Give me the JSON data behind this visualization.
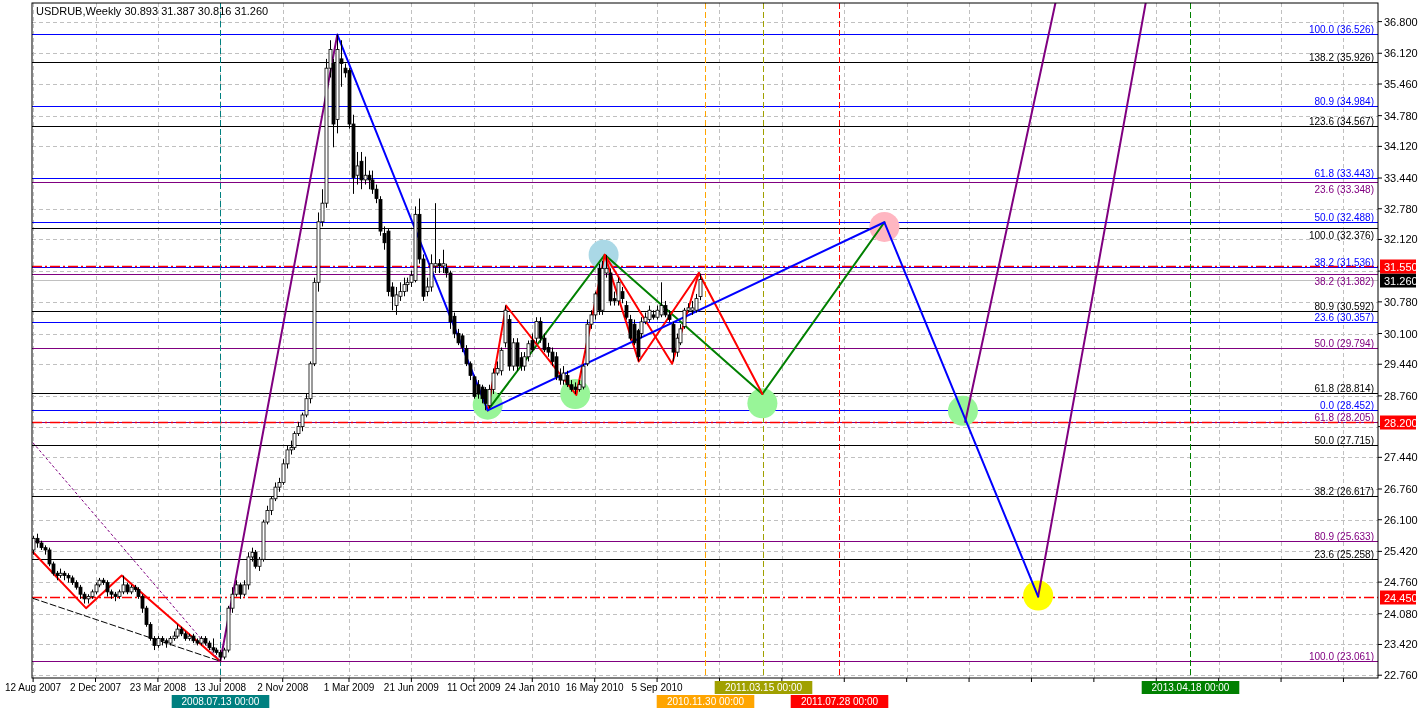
{
  "chart_data": {
    "type": "candlestick",
    "title": "USDRUB,Weekly  30.893 31.387 30.816 31.260",
    "x": [
      "2007-08-12",
      "2007-08-19",
      "2007-08-26",
      "2007-09-02",
      "2007-09-09",
      "2007-09-16",
      "2007-09-23",
      "2007-09-30",
      "2007-10-07",
      "2007-10-14",
      "2007-10-21",
      "2007-10-28",
      "2007-11-04",
      "2007-11-11",
      "2007-11-18",
      "2007-11-25",
      "2007-12-02",
      "2007-12-09",
      "2007-12-16",
      "2007-12-23",
      "2007-12-30",
      "2008-01-06",
      "2008-01-13",
      "2008-01-20",
      "2008-01-27",
      "2008-02-03",
      "2008-02-10",
      "2008-02-17",
      "2008-02-24",
      "2008-03-02",
      "2008-03-09",
      "2008-03-16",
      "2008-03-23",
      "2008-03-30",
      "2008-04-06",
      "2008-04-13",
      "2008-04-20",
      "2008-04-27",
      "2008-05-04",
      "2008-05-11",
      "2008-05-18",
      "2008-05-25",
      "2008-06-01",
      "2008-06-08",
      "2008-06-15",
      "2008-06-22",
      "2008-06-29",
      "2008-07-06",
      "2008-07-13",
      "2008-07-20",
      "2008-07-27",
      "2008-08-03",
      "2008-08-10",
      "2008-08-17",
      "2008-08-24",
      "2008-08-31",
      "2008-09-07",
      "2008-09-14",
      "2008-09-21",
      "2008-09-28",
      "2008-10-05",
      "2008-10-12",
      "2008-10-19",
      "2008-10-26",
      "2008-11-02",
      "2008-11-09",
      "2008-11-16",
      "2008-11-23",
      "2008-11-30",
      "2008-12-07",
      "2008-12-14",
      "2008-12-21",
      "2008-12-28",
      "2009-01-04",
      "2009-01-11",
      "2009-01-18",
      "2009-01-25",
      "2009-02-01",
      "2009-02-08",
      "2009-02-15",
      "2009-02-22",
      "2009-03-01",
      "2009-03-08",
      "2009-03-15",
      "2009-03-22",
      "2009-03-29",
      "2009-04-05",
      "2009-04-12",
      "2009-04-19",
      "2009-04-26",
      "2009-05-03",
      "2009-05-10",
      "2009-05-17",
      "2009-05-24",
      "2009-05-31",
      "2009-06-07",
      "2009-06-14",
      "2009-06-21",
      "2009-06-28",
      "2009-07-05",
      "2009-07-12",
      "2009-07-19",
      "2009-07-26",
      "2009-08-02",
      "2009-08-09",
      "2009-08-16",
      "2009-08-23",
      "2009-08-30",
      "2009-09-06",
      "2009-09-13",
      "2009-09-20",
      "2009-09-27",
      "2009-10-04",
      "2009-10-11",
      "2009-10-18",
      "2009-10-25",
      "2009-11-01",
      "2009-11-08",
      "2009-11-15",
      "2009-11-22",
      "2009-11-29",
      "2009-12-06",
      "2009-12-13",
      "2009-12-20",
      "2009-12-27",
      "2010-01-03",
      "2010-01-10",
      "2010-01-17",
      "2010-01-24",
      "2010-01-31",
      "2010-02-07",
      "2010-02-14",
      "2010-02-21",
      "2010-02-28",
      "2010-03-07",
      "2010-03-14",
      "2010-03-21",
      "2010-03-28",
      "2010-04-04",
      "2010-04-11",
      "2010-04-18",
      "2010-04-25",
      "2010-05-02",
      "2010-05-09",
      "2010-05-16",
      "2010-05-23",
      "2010-05-30",
      "2010-06-06",
      "2010-06-13",
      "2010-06-20",
      "2010-06-27",
      "2010-07-04",
      "2010-07-11",
      "2010-07-18",
      "2010-07-25",
      "2010-08-01",
      "2010-08-08",
      "2010-08-15",
      "2010-08-22",
      "2010-08-29",
      "2010-09-05",
      "2010-09-12",
      "2010-09-19",
      "2010-09-26",
      "2010-10-03",
      "2010-10-10",
      "2010-10-17",
      "2010-10-24",
      "2010-10-31",
      "2010-11-07",
      "2010-11-14",
      "2010-11-21"
    ],
    "ohlc": [
      [
        25.45,
        25.75,
        25.35,
        25.7
      ],
      [
        25.7,
        25.8,
        25.5,
        25.6
      ],
      [
        25.6,
        25.65,
        25.45,
        25.5
      ],
      [
        25.5,
        25.55,
        25.35,
        25.45
      ],
      [
        25.45,
        25.5,
        25.1,
        25.15
      ],
      [
        25.15,
        25.2,
        24.9,
        24.95
      ],
      [
        24.95,
        25.0,
        24.8,
        24.9
      ],
      [
        24.9,
        25.05,
        24.85,
        24.95
      ],
      [
        24.95,
        25.0,
        24.8,
        24.9
      ],
      [
        24.9,
        24.95,
        24.75,
        24.85
      ],
      [
        24.85,
        24.9,
        24.7,
        24.75
      ],
      [
        24.75,
        24.8,
        24.6,
        24.65
      ],
      [
        24.65,
        24.7,
        24.4,
        24.5
      ],
      [
        24.5,
        24.55,
        24.3,
        24.4
      ],
      [
        24.4,
        24.5,
        24.3,
        24.45
      ],
      [
        24.45,
        24.6,
        24.4,
        24.55
      ],
      [
        24.55,
        24.75,
        24.5,
        24.7
      ],
      [
        24.7,
        24.85,
        24.65,
        24.8
      ],
      [
        24.8,
        24.85,
        24.7,
        24.75
      ],
      [
        24.75,
        24.8,
        24.45,
        24.55
      ],
      [
        24.55,
        24.6,
        24.4,
        24.5
      ],
      [
        24.5,
        24.55,
        24.35,
        24.45
      ],
      [
        24.45,
        24.6,
        24.4,
        24.55
      ],
      [
        24.55,
        24.9,
        24.5,
        24.7
      ],
      [
        24.7,
        24.75,
        24.5,
        24.55
      ],
      [
        24.55,
        24.7,
        24.5,
        24.65
      ],
      [
        24.65,
        24.7,
        24.55,
        24.6
      ],
      [
        24.6,
        24.65,
        24.4,
        24.45
      ],
      [
        24.45,
        24.5,
        24.1,
        24.2
      ],
      [
        24.2,
        24.25,
        23.8,
        23.85
      ],
      [
        23.85,
        23.9,
        23.5,
        23.55
      ],
      [
        23.55,
        23.6,
        23.3,
        23.4
      ],
      [
        23.4,
        23.6,
        23.35,
        23.55
      ],
      [
        23.55,
        23.6,
        23.4,
        23.5
      ],
      [
        23.5,
        23.55,
        23.35,
        23.45
      ],
      [
        23.45,
        23.6,
        23.4,
        23.55
      ],
      [
        23.55,
        23.7,
        23.5,
        23.6
      ],
      [
        23.6,
        23.85,
        23.55,
        23.75
      ],
      [
        23.75,
        23.8,
        23.6,
        23.65
      ],
      [
        23.65,
        23.7,
        23.5,
        23.55
      ],
      [
        23.55,
        23.65,
        23.5,
        23.6
      ],
      [
        23.6,
        23.65,
        23.45,
        23.5
      ],
      [
        23.5,
        23.55,
        23.4,
        23.45
      ],
      [
        23.45,
        23.6,
        23.4,
        23.55
      ],
      [
        23.55,
        23.6,
        23.4,
        23.45
      ],
      [
        23.45,
        23.5,
        23.3,
        23.35
      ],
      [
        23.35,
        23.55,
        23.25,
        23.3
      ],
      [
        23.3,
        23.35,
        23.2,
        23.25
      ],
      [
        23.25,
        23.3,
        23.061,
        23.15
      ],
      [
        23.15,
        23.35,
        23.1,
        23.3
      ],
      [
        23.3,
        24.25,
        23.25,
        24.2
      ],
      [
        24.2,
        24.65,
        24.1,
        24.5
      ],
      [
        24.5,
        24.8,
        24.45,
        24.7
      ],
      [
        24.7,
        24.75,
        24.4,
        24.5
      ],
      [
        24.5,
        24.8,
        24.45,
        24.7
      ],
      [
        24.7,
        25.4,
        24.6,
        25.3
      ],
      [
        25.3,
        25.5,
        25.2,
        25.4
      ],
      [
        25.4,
        25.45,
        25.05,
        25.1
      ],
      [
        25.1,
        25.3,
        25.0,
        25.25
      ],
      [
        25.25,
        26.1,
        25.2,
        26.05
      ],
      [
        26.05,
        26.4,
        26.0,
        26.3
      ],
      [
        26.3,
        26.6,
        26.2,
        26.55
      ],
      [
        26.55,
        26.9,
        26.5,
        26.8
      ],
      [
        26.8,
        27.0,
        26.7,
        26.9
      ],
      [
        26.9,
        27.4,
        26.85,
        27.3
      ],
      [
        27.3,
        27.7,
        27.2,
        27.6
      ],
      [
        27.6,
        27.8,
        27.5,
        27.65
      ],
      [
        27.65,
        28.0,
        27.6,
        27.95
      ],
      [
        27.95,
        28.2,
        27.9,
        28.1
      ],
      [
        28.1,
        28.4,
        28.0,
        28.35
      ],
      [
        28.35,
        28.8,
        28.3,
        28.7
      ],
      [
        28.7,
        29.5,
        28.6,
        29.45
      ],
      [
        29.45,
        31.3,
        29.4,
        31.2
      ],
      [
        31.2,
        32.7,
        31.0,
        32.5
      ],
      [
        32.5,
        33.2,
        32.4,
        32.9
      ],
      [
        32.9,
        36.0,
        32.8,
        35.8
      ],
      [
        35.8,
        36.4,
        35.6,
        36.2
      ],
      [
        35.9,
        36.0,
        34.1,
        34.6
      ],
      [
        34.7,
        36.526,
        34.4,
        36.2
      ],
      [
        36.0,
        36.4,
        35.4,
        35.9
      ],
      [
        35.8,
        35.9,
        35.6,
        35.7
      ],
      [
        35.75,
        35.8,
        34.5,
        34.6
      ],
      [
        34.6,
        34.8,
        33.1,
        33.45
      ],
      [
        33.5,
        34.0,
        33.3,
        33.7
      ],
      [
        33.8,
        34.0,
        33.2,
        33.4
      ],
      [
        33.4,
        33.9,
        33.3,
        33.5
      ],
      [
        33.5,
        33.6,
        33.2,
        33.4
      ],
      [
        33.4,
        33.6,
        33.1,
        33.2
      ],
      [
        33.2,
        33.3,
        32.9,
        33.0
      ],
      [
        32.98,
        33.05,
        32.2,
        32.3
      ],
      [
        32.25,
        32.4,
        31.9,
        32.05
      ],
      [
        32.3,
        32.35,
        30.9,
        31.0
      ],
      [
        31.1,
        31.2,
        30.6,
        30.9
      ],
      [
        30.7,
        31.1,
        30.5,
        30.93
      ],
      [
        30.9,
        31.2,
        30.8,
        31.0
      ],
      [
        31.0,
        31.3,
        30.9,
        31.15
      ],
      [
        31.15,
        31.3,
        31.0,
        31.2
      ],
      [
        31.2,
        31.45,
        31.1,
        31.35
      ],
      [
        31.24,
        32.83,
        31.2,
        32.66
      ],
      [
        32.66,
        33.0,
        31.6,
        31.7
      ],
      [
        31.7,
        31.8,
        30.8,
        30.9
      ],
      [
        31.0,
        31.3,
        30.9,
        31.1
      ],
      [
        31.1,
        31.8,
        31.0,
        31.6
      ],
      [
        31.55,
        32.9,
        31.4,
        31.6
      ],
      [
        31.6,
        31.7,
        31.4,
        31.55
      ],
      [
        31.55,
        31.9,
        31.4,
        31.6
      ],
      [
        31.5,
        31.6,
        31.3,
        31.4
      ],
      [
        31.4,
        31.45,
        30.2,
        30.35
      ],
      [
        30.47,
        30.55,
        30.0,
        30.1
      ],
      [
        30.1,
        30.2,
        29.85,
        29.9
      ],
      [
        30.05,
        30.1,
        29.7,
        29.8
      ],
      [
        29.78,
        29.85,
        29.4,
        29.45
      ],
      [
        29.45,
        29.5,
        29.1,
        29.2
      ],
      [
        29.17,
        29.2,
        28.7,
        28.75
      ],
      [
        29.0,
        29.1,
        28.7,
        28.8
      ],
      [
        28.95,
        29.0,
        28.6,
        28.7
      ],
      [
        28.9,
        28.95,
        28.452,
        28.6
      ],
      [
        28.55,
        29.0,
        28.5,
        28.9
      ],
      [
        28.9,
        29.35,
        28.8,
        29.25
      ],
      [
        29.25,
        29.5,
        29.2,
        29.35
      ],
      [
        29.3,
        29.8,
        29.2,
        29.74
      ],
      [
        29.9,
        30.7,
        29.8,
        30.6
      ],
      [
        30.4,
        30.5,
        29.3,
        29.4
      ],
      [
        29.4,
        30.0,
        29.3,
        29.9
      ],
      [
        29.9,
        30.0,
        29.3,
        29.4
      ],
      [
        29.58,
        29.7,
        29.3,
        29.4
      ],
      [
        29.4,
        29.7,
        29.3,
        29.6
      ],
      [
        29.6,
        29.95,
        29.5,
        29.88
      ],
      [
        29.95,
        30.1,
        29.7,
        29.75
      ],
      [
        30.0,
        30.45,
        29.9,
        30.36
      ],
      [
        30.36,
        30.45,
        29.9,
        30.0
      ],
      [
        30.0,
        30.1,
        29.7,
        29.75
      ],
      [
        29.8,
        29.9,
        29.6,
        29.7
      ],
      [
        29.7,
        29.8,
        29.4,
        29.5
      ],
      [
        29.6,
        29.7,
        29.1,
        29.17
      ],
      [
        29.2,
        29.35,
        29.0,
        29.1
      ],
      [
        29.1,
        29.4,
        29.0,
        29.25
      ],
      [
        29.2,
        29.3,
        28.95,
        29.0
      ],
      [
        29.0,
        29.1,
        28.85,
        28.9
      ],
      [
        28.95,
        29.05,
        28.8,
        28.9
      ],
      [
        28.9,
        29.1,
        28.85,
        29.0
      ],
      [
        28.95,
        29.45,
        28.9,
        29.4
      ],
      [
        29.45,
        30.4,
        29.4,
        30.3
      ],
      [
        30.3,
        30.6,
        30.2,
        30.5
      ],
      [
        30.5,
        31.0,
        30.4,
        30.95
      ],
      [
        31.5,
        31.6,
        30.5,
        30.6
      ],
      [
        30.6,
        31.66,
        30.5,
        31.5
      ],
      [
        31.4,
        31.79,
        31.3,
        31.5
      ],
      [
        31.4,
        31.5,
        30.7,
        30.8
      ],
      [
        30.85,
        31.0,
        30.7,
        30.8
      ],
      [
        30.8,
        31.3,
        30.7,
        31.2
      ],
      [
        31.0,
        31.1,
        30.75,
        30.85
      ],
      [
        30.7,
        30.8,
        30.4,
        30.45
      ],
      [
        30.4,
        30.5,
        29.95,
        30.0
      ],
      [
        30.3,
        30.4,
        29.85,
        29.9
      ],
      [
        30.16,
        30.2,
        29.5,
        29.6
      ],
      [
        30.1,
        30.45,
        30.0,
        30.35
      ],
      [
        30.35,
        30.55,
        30.3,
        30.45
      ],
      [
        30.4,
        30.7,
        30.35,
        30.6
      ],
      [
        30.5,
        30.6,
        30.4,
        30.45
      ],
      [
        30.45,
        30.7,
        30.4,
        30.6
      ],
      [
        30.5,
        31.2,
        30.45,
        30.7
      ],
      [
        30.7,
        30.8,
        30.45,
        30.5
      ],
      [
        30.5,
        30.6,
        30.35,
        30.4
      ],
      [
        30.3,
        30.35,
        29.5,
        29.7
      ],
      [
        29.7,
        30.1,
        29.6,
        30.0
      ],
      [
        29.9,
        30.3,
        29.85,
        30.2
      ],
      [
        30.25,
        30.65,
        30.2,
        30.6
      ],
      [
        30.6,
        30.75,
        30.55,
        30.65
      ],
      [
        30.6,
        30.8,
        30.5,
        30.65
      ],
      [
        30.6,
        30.95,
        30.55,
        30.85
      ],
      [
        30.893,
        31.387,
        30.816,
        31.26
      ]
    ],
    "series": [
      {
        "type": "scatter",
        "marker": "circle",
        "x": [
          "2009-11-05",
          "2010-04-11",
          "2010-06-01",
          "2011-03-13",
          "2011-10-18",
          "2012-03-07",
          "2012-07-20"
        ],
        "values": [
          28.57,
          28.8,
          31.79,
          28.6,
          32.39,
          28.44,
          24.47
        ],
        "colors": [
          "#98f598",
          "#98f598",
          "#aad8e6",
          "#98f598",
          "#ffb6c1",
          "#98f598",
          "#ffff00"
        ]
      },
      {
        "type": "line",
        "color": "#ff0000",
        "line_style": "solid",
        "x": [
          "2007-08-12",
          "2007-11-15",
          "2008-01-18",
          "2008-07-13"
        ],
        "values": [
          25.4,
          24.2,
          24.9,
          23.06
        ]
      },
      {
        "type": "line",
        "color": "#800080",
        "line_style": "dotted",
        "x": [
          "2007-08-12",
          "2008-07-13"
        ],
        "values": [
          27.75,
          23.06
        ]
      },
      {
        "type": "line",
        "color": "#000000",
        "line_style": "dashed",
        "x": [
          "2007-08-12",
          "2008-07-13"
        ],
        "values": [
          24.41,
          23.06
        ]
      },
      {
        "type": "line",
        "color": "#800080",
        "line_style": "solid",
        "x": [
          "2008-07-13",
          "2009-02-08"
        ],
        "values": [
          23.06,
          36.52
        ]
      },
      {
        "type": "line",
        "color": "#800080",
        "line_style": "solid",
        "x": [
          "2012-03-11",
          "2012-08-20"
        ],
        "values": [
          28.2,
          37.2
        ]
      },
      {
        "type": "line",
        "color": "#800080",
        "line_style": "solid",
        "x": [
          "2012-07-20",
          "2013-01-29"
        ],
        "values": [
          24.45,
          37.2
        ]
      },
      {
        "type": "line",
        "color": "#008000",
        "line_style": "solid",
        "x": [
          "2009-11-05",
          "2010-06-03",
          "2011-03-13",
          "2011-10-18"
        ],
        "values": [
          28.45,
          31.79,
          28.8,
          32.49
        ]
      },
      {
        "type": "line",
        "color": "#ff0000",
        "line_style": "solid",
        "x": [
          "2009-11-05",
          "2009-12-08",
          "2010-04-13",
          "2010-06-03",
          "2010-10-02",
          "2010-11-19"
        ],
        "values": [
          28.45,
          30.7,
          28.78,
          31.79,
          29.45,
          31.4
        ]
      },
      {
        "type": "line",
        "color": "#ff0000",
        "line_style": "solid",
        "x": [
          "2010-06-03",
          "2010-08-03",
          "2010-11-19",
          "2011-03-13"
        ],
        "values": [
          31.79,
          29.5,
          31.4,
          28.8
        ]
      },
      {
        "type": "line",
        "color": "#0000ff",
        "line_style": "solid",
        "x": [
          "2009-02-08",
          "2009-11-05",
          "2011-10-18",
          "2012-07-20"
        ],
        "values": [
          36.52,
          28.45,
          32.49,
          24.45
        ]
      }
    ],
    "xlim": [
      "2007-08-10",
      "2014-03-22"
    ],
    "ylim": [
      22.7,
      37.2
    ],
    "xticks": [
      {
        "value": "2007-08-12",
        "label": "12 Aug 2007"
      },
      {
        "value": "2007-12-02",
        "label": "2 Dec 2007"
      },
      {
        "value": "2008-03-23",
        "label": "23 Mar 2008"
      },
      {
        "value": "2008-07-13",
        "label": "13 Jul 2008"
      },
      {
        "value": "2008-11-02",
        "label": "2 Nov 2008"
      },
      {
        "value": "2009-03-01",
        "label": "1 Mar 2009"
      },
      {
        "value": "2009-06-21",
        "label": "21 Jun 2009"
      },
      {
        "value": "2009-10-11",
        "label": "11 Oct 2009"
      },
      {
        "value": "2010-01-24",
        "label": "24 Jan 2010"
      },
      {
        "value": "2010-05-16",
        "label": "16 May 2010"
      },
      {
        "value": "2010-09-05",
        "label": "5 Sep 2010"
      },
      {
        "value": "2010-12-26",
        "label": null
      },
      {
        "value": "2011-04-17",
        "label": null
      },
      {
        "value": "2011-08-07",
        "label": null
      },
      {
        "value": "2011-11-27",
        "label": null
      },
      {
        "value": "2012-03-18",
        "label": null
      },
      {
        "value": "2012-07-08",
        "label": null
      },
      {
        "value": "2012-10-28",
        "label": null
      },
      {
        "value": "2013-02-17",
        "label": null
      },
      {
        "value": "2013-06-09",
        "label": null
      },
      {
        "value": "2013-09-29",
        "label": null
      },
      {
        "value": "2014-01-19",
        "label": null
      }
    ],
    "yticks": [
      {
        "value": 22.76,
        "label": "22.760"
      },
      {
        "value": 23.42,
        "label": "23.420"
      },
      {
        "value": 24.08,
        "label": "24.080"
      },
      {
        "value": 24.76,
        "label": "24.760"
      },
      {
        "value": 25.42,
        "label": "25.420"
      },
      {
        "value": 26.1,
        "label": "26.100"
      },
      {
        "value": 26.76,
        "label": "26.760"
      },
      {
        "value": 27.44,
        "label": "27.440"
      },
      {
        "value": 28.1,
        "label": null
      },
      {
        "value": 28.76,
        "label": "28.760"
      },
      {
        "value": 29.44,
        "label": "29.440"
      },
      {
        "value": 30.1,
        "label": "30.100"
      },
      {
        "value": 30.78,
        "label": "30.780"
      },
      {
        "value": 31.44,
        "label": null
      },
      {
        "value": 32.12,
        "label": "32.120"
      },
      {
        "value": 32.78,
        "label": "32.780"
      },
      {
        "value": 33.44,
        "label": "33.440"
      },
      {
        "value": 34.12,
        "label": "34.120"
      },
      {
        "value": 34.78,
        "label": "34.780"
      },
      {
        "value": 35.46,
        "label": "35.460"
      },
      {
        "value": 36.12,
        "label": "36.120"
      },
      {
        "value": 36.8,
        "label": "36.800"
      }
    ],
    "grid": true,
    "ref_lines": [
      {
        "axis": "y",
        "value": 36.526,
        "label": "100.0   (36.526)",
        "color": "#0000ff"
      },
      {
        "axis": "y",
        "value": 35.926,
        "label": "138.2   (35.926)",
        "color": "#000000"
      },
      {
        "axis": "y",
        "value": 34.984,
        "label": "80.9   (34.984)",
        "color": "#0000ff"
      },
      {
        "axis": "y",
        "value": 34.567,
        "label": "123.6   (34.567)",
        "color": "#000000"
      },
      {
        "axis": "y",
        "value": 33.443,
        "label": "61.8   (33.443)",
        "color": "#0000ff"
      },
      {
        "axis": "y",
        "value": 33.348,
        "label": "23.6   (33.348)",
        "color": "#800080"
      },
      {
        "axis": "y",
        "value": 32.488,
        "label": "50.0   (32.488)",
        "color": "#0000ff"
      },
      {
        "axis": "y",
        "value": 32.376,
        "label": "100.0   (32.376)",
        "color": "#000000"
      },
      {
        "axis": "y",
        "value": 31.536,
        "label": "38.2   (31.536)",
        "color": "#0000ff"
      },
      {
        "axis": "y",
        "value": 31.382,
        "label": "38.2   (31.382)",
        "color": "#800080"
      },
      {
        "axis": "y",
        "value": 30.592,
        "label": "80.9   (30.592)",
        "color": "#000000"
      },
      {
        "axis": "y",
        "value": 30.357,
        "label": "23.6   (30.357)",
        "color": "#0000ff"
      },
      {
        "axis": "y",
        "value": 29.794,
        "label": "50.0   (29.794)",
        "color": "#800080"
      },
      {
        "axis": "y",
        "value": 28.814,
        "label": "61.8   (28.814)",
        "color": "#000000"
      },
      {
        "axis": "y",
        "value": 28.452,
        "label": "0.0   (28.452)",
        "color": "#0000ff"
      },
      {
        "axis": "y",
        "value": 28.205,
        "label": "61.8   (28.205)",
        "color": "#800080"
      },
      {
        "axis": "y",
        "value": 27.715,
        "label": "50.0   (27.715)",
        "color": "#000000"
      },
      {
        "axis": "y",
        "value": 26.617,
        "label": "38.2   (26.617)",
        "color": "#000000"
      },
      {
        "axis": "y",
        "value": 25.633,
        "label": "80.9   (25.633)",
        "color": "#800080"
      },
      {
        "axis": "y",
        "value": 25.258,
        "label": "23.6   (25.258)",
        "color": "#000000"
      },
      {
        "axis": "y",
        "value": 23.061,
        "label": "100.0   (23.061)",
        "color": "#800080"
      },
      {
        "axis": "y",
        "value": 31.26,
        "label": "31.260",
        "color": "#c0c0c0",
        "line_style": "solid"
      },
      {
        "axis": "y",
        "value": 31.55,
        "label": "31.550",
        "color": "#ff0000",
        "line_style": "dashed"
      },
      {
        "axis": "y",
        "value": 28.2,
        "label": "28.200",
        "color": "#ff0000",
        "line_style": "dashed"
      },
      {
        "axis": "y",
        "value": 24.45,
        "label": "24.450",
        "color": "#ff0000",
        "line_style": "dashed"
      },
      {
        "axis": "x",
        "value": "2008-07-13",
        "label": "2008.07.13 00:00",
        "color": "#008080",
        "line_style": "dashed"
      },
      {
        "axis": "x",
        "value": "2010-11-30",
        "label": "2010.11.30 00:00",
        "color": "#ffa500",
        "line_style": "dashed"
      },
      {
        "axis": "x",
        "value": "2011-03-15",
        "label": "2011.03.15 00:00",
        "color": "#a0a000",
        "line_style": "dashed"
      },
      {
        "axis": "x",
        "value": "2011-07-28",
        "label": "2011.07.28 00:00",
        "color": "#ff0000",
        "line_style": "dashed"
      },
      {
        "axis": "x",
        "value": "2013-04-18",
        "label": "2013.04.18 00:00",
        "color": "#008000",
        "line_style": "dashed"
      }
    ]
  }
}
